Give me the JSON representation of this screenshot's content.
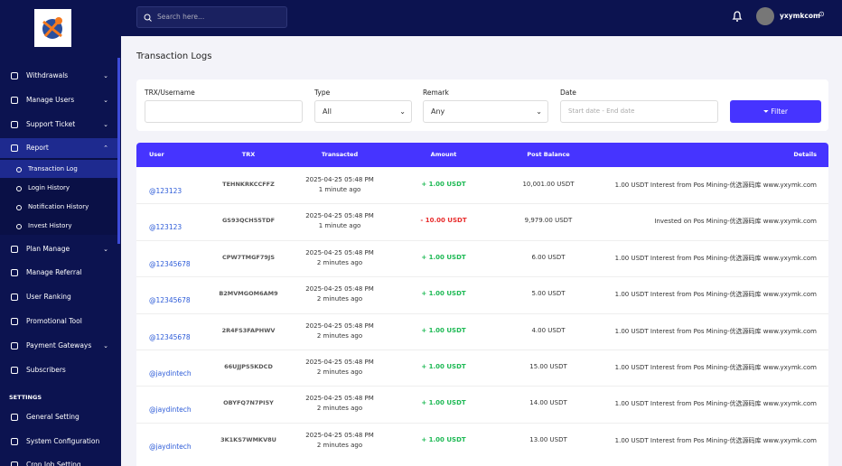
{
  "sidebar": {
    "menu": [
      "Withdrawals",
      "Manage Users",
      "Support Ticket",
      "Report"
    ],
    "report_submenu": [
      "Transaction Log",
      "Login History",
      "Notification History",
      "Invest History"
    ],
    "menu_more": [
      "Plan Manage",
      "Manage Referral",
      "User Ranking",
      "Promotional Tool",
      "Payment Gateways",
      "Subscribers"
    ],
    "settings_heading": "SETTINGS",
    "settings": [
      "General Setting",
      "System Configuration",
      "Cron Job Setting"
    ]
  },
  "topbar": {
    "search_placeholder": "Search here...",
    "username": "yxymkcom"
  },
  "page": {
    "title": "Transaction Logs"
  },
  "filter": {
    "trx_label": "TRX/Username",
    "type_label": "Type",
    "type_value": "All",
    "remark_label": "Remark",
    "remark_value": "Any",
    "date_label": "Date",
    "date_placeholder": "Start date - End date",
    "button": "Filter"
  },
  "table": {
    "headers": [
      "User",
      "TRX",
      "Transacted",
      "Amount",
      "Post Balance",
      "Details"
    ],
    "rows": [
      [
        "@123123",
        "TEHNKRKCCFFZ",
        "2025-04-25 05:48 PM",
        "1 minute ago",
        "+ 1.00 USDT",
        "10,001.00 USDT",
        "1.00 USDT Interest from Pos Mining-优选源码库 www.yxymk.com"
      ],
      [
        "@123123",
        "GS93QCH55TDF",
        "2025-04-25 05:48 PM",
        "1 minute ago",
        "- 10.00 USDT",
        "9,979.00 USDT",
        "Invested on Pos Mining-优选源码库 www.yxymk.com"
      ],
      [
        "@12345678",
        "CPW7TMGF79JS",
        "2025-04-25 05:48 PM",
        "2 minutes ago",
        "+ 1.00 USDT",
        "6.00 USDT",
        "1.00 USDT Interest from Pos Mining-优选源码库 www.yxymk.com"
      ],
      [
        "@12345678",
        "B2MVMGOM6AM9",
        "2025-04-25 05:48 PM",
        "2 minutes ago",
        "+ 1.00 USDT",
        "5.00 USDT",
        "1.00 USDT Interest from Pos Mining-优选源码库 www.yxymk.com"
      ],
      [
        "@12345678",
        "2R4FS3FAPHWV",
        "2025-04-25 05:48 PM",
        "2 minutes ago",
        "+ 1.00 USDT",
        "4.00 USDT",
        "1.00 USDT Interest from Pos Mining-优选源码库 www.yxymk.com"
      ],
      [
        "@jaydintech",
        "66UJJPS5KDCD",
        "2025-04-25 05:48 PM",
        "2 minutes ago",
        "+ 1.00 USDT",
        "15.00 USDT",
        "1.00 USDT Interest from Pos Mining-优选源码库 www.yxymk.com"
      ],
      [
        "@jaydintech",
        "OBYFQ7N7PI5Y",
        "2025-04-25 05:48 PM",
        "2 minutes ago",
        "+ 1.00 USDT",
        "14.00 USDT",
        "1.00 USDT Interest from Pos Mining-优选源码库 www.yxymk.com"
      ],
      [
        "@jaydintech",
        "3K1KS7WMKV8U",
        "2025-04-25 05:48 PM",
        "2 minutes ago",
        "+ 1.00 USDT",
        "13.00 USDT",
        "1.00 USDT Interest from Pos Mining-优选源码库 www.yxymk.com"
      ]
    ]
  }
}
